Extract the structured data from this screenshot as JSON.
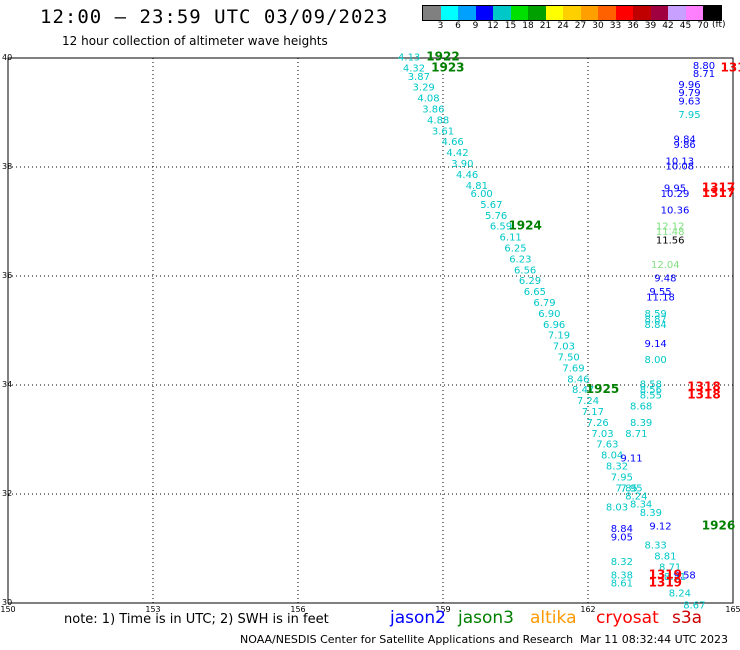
{
  "header": {
    "title": "12:00 – 23:59 UTC 03/09/2023",
    "subtitle": "12 hour collection of altimeter wave heights"
  },
  "color_scale": {
    "unit": "(ft)",
    "labels": [
      "3",
      "6",
      "9",
      "12",
      "15",
      "18",
      "21",
      "24",
      "27",
      "30",
      "33",
      "36",
      "39",
      "42",
      "45",
      "70"
    ],
    "colors": [
      "#808080",
      "#00ffff",
      "#00a0ff",
      "#0000ff",
      "#00c8c8",
      "#00e000",
      "#00a000",
      "#ffff00",
      "#ffd000",
      "#ffa000",
      "#ff6000",
      "#ff0000",
      "#c00000",
      "#a00040",
      "#c8a0ff",
      "#ff80ff",
      "#000000"
    ]
  },
  "footer": {
    "note": "note:  1) Time is in UTC;  2) SWH is in feet",
    "legend": [
      {
        "name": "jason2",
        "color": "#0000ff"
      },
      {
        "name": "jason3",
        "color": "#008000"
      },
      {
        "name": "altika",
        "color": "#ff9900"
      },
      {
        "name": "cryosat",
        "color": "#ff0000"
      },
      {
        "name": "s3a",
        "color": "#cc0000"
      }
    ],
    "credit": "NOAA/NESDIS Center for Satellite Applications and Research",
    "timestamp": "Mar 11 08:32:44 UTC 2023"
  },
  "chart_data": {
    "type": "scatter",
    "xlim": [
      150,
      165
    ],
    "ylim": [
      30,
      40
    ],
    "x_ticks": [
      150,
      153,
      156,
      159,
      162,
      165
    ],
    "y_ticks": [
      30,
      32,
      34,
      36,
      38,
      40
    ],
    "grid": true,
    "points": [
      {
        "x": 158.3,
        "y": 39.95,
        "label": "4.13",
        "color": "#00c8c8"
      },
      {
        "x": 158.4,
        "y": 39.75,
        "label": "4.32",
        "color": "#00c8c8"
      },
      {
        "x": 158.5,
        "y": 39.6,
        "label": "3.87",
        "color": "#00c8c8"
      },
      {
        "x": 158.6,
        "y": 39.4,
        "label": "3.29",
        "color": "#00c8c8"
      },
      {
        "x": 158.7,
        "y": 39.2,
        "label": "4.08",
        "color": "#00c8c8"
      },
      {
        "x": 158.8,
        "y": 39.0,
        "label": "3.86",
        "color": "#00c8c8"
      },
      {
        "x": 158.9,
        "y": 38.8,
        "label": "4.88",
        "color": "#00c8c8"
      },
      {
        "x": 159.0,
        "y": 38.6,
        "label": "3.61",
        "color": "#00c8c8"
      },
      {
        "x": 159.2,
        "y": 38.4,
        "label": "4.66",
        "color": "#00c8c8"
      },
      {
        "x": 159.3,
        "y": 38.2,
        "label": "4.42",
        "color": "#00c8c8"
      },
      {
        "x": 159.4,
        "y": 38.0,
        "label": "3.90",
        "color": "#00c8c8"
      },
      {
        "x": 159.5,
        "y": 37.8,
        "label": "4.46",
        "color": "#00c8c8"
      },
      {
        "x": 159.7,
        "y": 37.6,
        "label": "4.81",
        "color": "#00c8c8"
      },
      {
        "x": 159.8,
        "y": 37.45,
        "label": "6.00",
        "color": "#00c8c8"
      },
      {
        "x": 160.0,
        "y": 37.25,
        "label": "5.67",
        "color": "#00c8c8"
      },
      {
        "x": 160.1,
        "y": 37.05,
        "label": "5.76",
        "color": "#00c8c8"
      },
      {
        "x": 160.2,
        "y": 36.85,
        "label": "6.59",
        "color": "#00c8c8"
      },
      {
        "x": 160.4,
        "y": 36.65,
        "label": "6.11",
        "color": "#00c8c8"
      },
      {
        "x": 160.5,
        "y": 36.45,
        "label": "6.25",
        "color": "#00c8c8"
      },
      {
        "x": 160.6,
        "y": 36.25,
        "label": "6.23",
        "color": "#00c8c8"
      },
      {
        "x": 160.7,
        "y": 36.05,
        "label": "6.56",
        "color": "#00c8c8"
      },
      {
        "x": 160.8,
        "y": 35.85,
        "label": "6.29",
        "color": "#00c8c8"
      },
      {
        "x": 160.9,
        "y": 35.65,
        "label": "6.65",
        "color": "#00c8c8"
      },
      {
        "x": 161.1,
        "y": 35.45,
        "label": "6.79",
        "color": "#00c8c8"
      },
      {
        "x": 161.2,
        "y": 35.25,
        "label": "6.90",
        "color": "#00c8c8"
      },
      {
        "x": 161.3,
        "y": 35.05,
        "label": "6.96",
        "color": "#00c8c8"
      },
      {
        "x": 161.4,
        "y": 34.85,
        "label": "7.19",
        "color": "#00c8c8"
      },
      {
        "x": 161.5,
        "y": 34.65,
        "label": "7.03",
        "color": "#00c8c8"
      },
      {
        "x": 161.6,
        "y": 34.45,
        "label": "7.50",
        "color": "#00c8c8"
      },
      {
        "x": 161.7,
        "y": 34.25,
        "label": "7.69",
        "color": "#00c8c8"
      },
      {
        "x": 161.8,
        "y": 34.05,
        "label": "8.46",
        "color": "#00c8c8"
      },
      {
        "x": 161.9,
        "y": 33.85,
        "label": "8.47",
        "color": "#00c8c8"
      },
      {
        "x": 162.0,
        "y": 33.65,
        "label": "7.24",
        "color": "#00c8c8"
      },
      {
        "x": 162.1,
        "y": 33.45,
        "label": "7.17",
        "color": "#00c8c8"
      },
      {
        "x": 162.2,
        "y": 33.25,
        "label": "7.26",
        "color": "#00c8c8"
      },
      {
        "x": 162.3,
        "y": 33.05,
        "label": "7.03",
        "color": "#00c8c8"
      },
      {
        "x": 162.4,
        "y": 32.85,
        "label": "7.63",
        "color": "#00c8c8"
      },
      {
        "x": 162.5,
        "y": 32.65,
        "label": "8.04",
        "color": "#00c8c8"
      },
      {
        "x": 162.6,
        "y": 32.45,
        "label": "8.32",
        "color": "#00c8c8"
      },
      {
        "x": 162.7,
        "y": 32.25,
        "label": "7.95",
        "color": "#00c8c8"
      },
      {
        "x": 162.8,
        "y": 32.05,
        "label": "7.85",
        "color": "#00c8c8"
      },
      {
        "x": 162.6,
        "y": 31.7,
        "label": "8.03",
        "color": "#00c8c8"
      },
      {
        "x": 163.1,
        "y": 31.75,
        "label": "8.34",
        "color": "#00c8c8"
      },
      {
        "x": 163.3,
        "y": 31.6,
        "label": "8.39",
        "color": "#00c8c8"
      },
      {
        "x": 163.4,
        "y": 31.0,
        "label": "8.33",
        "color": "#00c8c8"
      },
      {
        "x": 163.6,
        "y": 30.8,
        "label": "8.81",
        "color": "#00c8c8"
      },
      {
        "x": 163.7,
        "y": 30.6,
        "label": "8.71",
        "color": "#00c8c8"
      },
      {
        "x": 163.8,
        "y": 30.42,
        "label": "8.21",
        "color": "#00c8c8"
      },
      {
        "x": 163.9,
        "y": 30.12,
        "label": "8.24",
        "color": "#00c8c8"
      },
      {
        "x": 164.2,
        "y": 29.9,
        "label": "8.67",
        "color": "#00c8c8"
      },
      {
        "x": 163.1,
        "y": 33.55,
        "label": "8.68",
        "color": "#00c8c8"
      },
      {
        "x": 163.1,
        "y": 33.25,
        "label": "8.39",
        "color": "#00c8c8"
      },
      {
        "x": 163.0,
        "y": 33.05,
        "label": "8.71",
        "color": "#00c8c8"
      },
      {
        "x": 162.9,
        "y": 32.6,
        "label": "9.11",
        "color": "#0000ff"
      },
      {
        "x": 162.9,
        "y": 32.05,
        "label": "7.95",
        "color": "#00c8c8"
      },
      {
        "x": 163.0,
        "y": 31.9,
        "label": "8.24",
        "color": "#00c8c8"
      },
      {
        "x": 162.7,
        "y": 31.3,
        "label": "8.84",
        "color": "#0000ff"
      },
      {
        "x": 162.7,
        "y": 31.15,
        "label": "9.05",
        "color": "#0000ff"
      },
      {
        "x": 163.5,
        "y": 31.35,
        "label": "9.12",
        "color": "#0000ff"
      },
      {
        "x": 162.7,
        "y": 30.7,
        "label": "8.32",
        "color": "#00c8c8"
      },
      {
        "x": 162.7,
        "y": 30.45,
        "label": "8.38",
        "color": "#00c8c8"
      },
      {
        "x": 162.7,
        "y": 30.3,
        "label": "8.61",
        "color": "#00c8c8"
      },
      {
        "x": 164.0,
        "y": 30.45,
        "label": "9.58",
        "color": "#0000ff"
      },
      {
        "x": 164.4,
        "y": 39.8,
        "label": "8.80",
        "color": "#0000ff"
      },
      {
        "x": 164.4,
        "y": 39.65,
        "label": "8.71",
        "color": "#0000ff"
      },
      {
        "x": 164.1,
        "y": 39.45,
        "label": "9.96",
        "color": "#0000ff"
      },
      {
        "x": 164.1,
        "y": 39.3,
        "label": "9.79",
        "color": "#0000ff"
      },
      {
        "x": 164.1,
        "y": 39.15,
        "label": "9.63",
        "color": "#0000ff"
      },
      {
        "x": 164.1,
        "y": 38.9,
        "label": "7.95",
        "color": "#00c8c8"
      },
      {
        "x": 164.0,
        "y": 38.45,
        "label": "9.84",
        "color": "#0000ff"
      },
      {
        "x": 164.0,
        "y": 38.35,
        "label": "9.86",
        "color": "#0000ff"
      },
      {
        "x": 163.9,
        "y": 38.05,
        "label": "10.13",
        "color": "#0000ff"
      },
      {
        "x": 163.9,
        "y": 37.95,
        "label": "10.08",
        "color": "#0000ff"
      },
      {
        "x": 163.8,
        "y": 37.55,
        "label": "9.95",
        "color": "#0000ff"
      },
      {
        "x": 163.8,
        "y": 37.45,
        "label": "10.29",
        "color": "#0000ff"
      },
      {
        "x": 163.8,
        "y": 37.15,
        "label": "10.36",
        "color": "#0000ff"
      },
      {
        "x": 163.7,
        "y": 36.85,
        "label": "12.12",
        "color": "#80e080"
      },
      {
        "x": 163.7,
        "y": 36.75,
        "label": "11.48",
        "color": "#80e080"
      },
      {
        "x": 163.7,
        "y": 36.6,
        "label": "11.56",
        "color": "#000000"
      },
      {
        "x": 163.6,
        "y": 36.15,
        "label": "12.04",
        "color": "#80e080"
      },
      {
        "x": 163.6,
        "y": 35.9,
        "label": "9.48",
        "color": "#0000ff"
      },
      {
        "x": 163.5,
        "y": 35.65,
        "label": "9.55",
        "color": "#0000ff"
      },
      {
        "x": 163.5,
        "y": 35.55,
        "label": "11.18",
        "color": "#0000ff"
      },
      {
        "x": 163.4,
        "y": 35.25,
        "label": "8.59",
        "color": "#00c8c8"
      },
      {
        "x": 163.4,
        "y": 35.15,
        "label": "8.87",
        "color": "#00c8c8"
      },
      {
        "x": 163.4,
        "y": 35.05,
        "label": "8.84",
        "color": "#00c8c8"
      },
      {
        "x": 163.4,
        "y": 34.7,
        "label": "9.14",
        "color": "#0000ff"
      },
      {
        "x": 163.4,
        "y": 34.4,
        "label": "8.00",
        "color": "#00c8c8"
      },
      {
        "x": 163.3,
        "y": 33.95,
        "label": "8.58",
        "color": "#00c8c8"
      },
      {
        "x": 163.3,
        "y": 33.85,
        "label": "8.56",
        "color": "#00c8c8"
      },
      {
        "x": 163.3,
        "y": 33.75,
        "label": "8.55",
        "color": "#00c8c8"
      }
    ],
    "pass_labels": [
      {
        "x": 159.0,
        "y": 39.95,
        "label": "1922",
        "color": "#008000"
      },
      {
        "x": 159.1,
        "y": 39.75,
        "label": "1923",
        "color": "#008000"
      },
      {
        "x": 160.7,
        "y": 36.85,
        "label": "1924",
        "color": "#008000"
      },
      {
        "x": 162.3,
        "y": 33.85,
        "label": "1925",
        "color": "#008000"
      },
      {
        "x": 164.7,
        "y": 31.35,
        "label": "1926",
        "color": "#008000"
      },
      {
        "x": 165.0,
        "y": 39.75,
        "label": "131",
        "color": "#ff0000"
      },
      {
        "x": 164.7,
        "y": 37.55,
        "label": "1317",
        "color": "#ff0000"
      },
      {
        "x": 164.7,
        "y": 37.45,
        "label": "1317",
        "color": "#ff0000"
      },
      {
        "x": 164.4,
        "y": 33.9,
        "label": "1318",
        "color": "#ff0000"
      },
      {
        "x": 164.4,
        "y": 33.75,
        "label": "1318",
        "color": "#ff0000"
      },
      {
        "x": 163.6,
        "y": 30.45,
        "label": "1319",
        "color": "#ff0000"
      },
      {
        "x": 163.6,
        "y": 30.3,
        "label": "1319",
        "color": "#ff0000"
      }
    ]
  }
}
